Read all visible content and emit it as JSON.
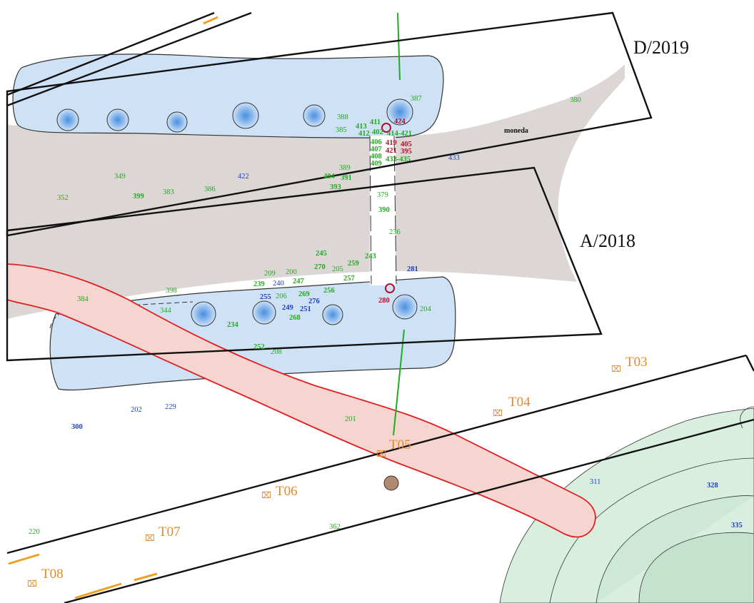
{
  "trenches": {
    "d2019": "D/2019",
    "a2018": "A/2018"
  },
  "moneda": "moneda",
  "trench_markers": [
    "T03",
    "T04",
    "T05",
    "T06",
    "T07",
    "T08"
  ],
  "labels": {
    "n380": "380",
    "n387": "387",
    "n388": "388",
    "n385": "385",
    "n411": "411",
    "n413": "413",
    "n412": "412",
    "n402": "402",
    "n424": "424",
    "n414_421": "414-421",
    "n406": "406",
    "n407": "407",
    "n408": "408",
    "n409": "409",
    "n419": "419",
    "n421": "421",
    "n405": "405",
    "n395": "395",
    "n433_435": "433-435",
    "n433": "433",
    "n349": "349",
    "n352": "352",
    "n399": "399",
    "n383": "383",
    "n386": "386",
    "n422": "422",
    "n389": "389",
    "n404": "404",
    "n391": "391",
    "n393": "393",
    "n379": "379",
    "n390": "390",
    "n236": "236",
    "n245": "245",
    "n243": "243",
    "n270": "270",
    "n205": "205",
    "n259": "259",
    "n257": "257",
    "n281": "281",
    "n209": "209",
    "n200": "200",
    "n239": "239",
    "n240": "240",
    "n247": "247",
    "n398": "398",
    "n384": "384",
    "n344": "344",
    "n255": "255",
    "n206": "206",
    "n269": "269",
    "n256": "256",
    "n276": "276",
    "n249": "249",
    "n251": "251",
    "n280": "280",
    "n204": "204",
    "n268": "268",
    "n234": "234",
    "n252": "252",
    "n208": "208",
    "n202": "202",
    "n229": "229",
    "n300": "300",
    "n201": "201",
    "n311": "311",
    "n328": "328",
    "n335": "335",
    "n362": "362",
    "n220": "220"
  },
  "colors": {
    "green_label": "#22aa22",
    "blue_label": "#1f3fc0",
    "red_label": "#b0102a",
    "trench_marker": "#e08a2a",
    "grey_band": "#dcd7d5",
    "blue_pool": "#cfe2f5",
    "red_channel": "#f6d4cf",
    "green_mound": "#d8efe0"
  }
}
